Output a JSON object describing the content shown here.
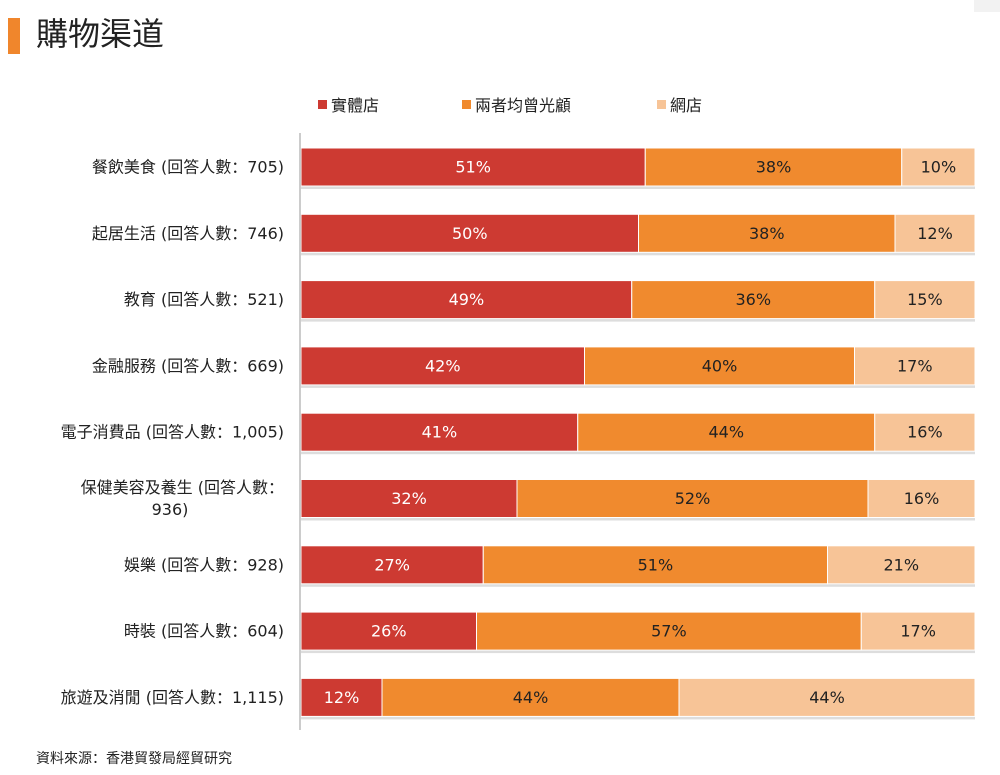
{
  "header": {
    "title": "購物渠道"
  },
  "source_note": "資料來源：香港貿發局經貿研究",
  "colors": {
    "title_accent": "#f0862c",
    "series": [
      "#cd3a32",
      "#f08a2e",
      "#f7c497"
    ],
    "axis": "#999999"
  },
  "chart_data": {
    "type": "bar",
    "orientation": "horizontal",
    "stacked": true,
    "title": "購物渠道",
    "legend_position": "top",
    "xlim": [
      0,
      100
    ],
    "value_suffix": "%",
    "categories": [
      "餐飲美食 (回答人數：705)",
      "起居生活 (回答人數：746)",
      "教育 (回答人數：521)",
      "金融服務 (回答人數：669)",
      "電子消費品 (回答人數：1,005)",
      "保健美容及養生 (回答人數：936)",
      "娛樂 (回答人數：928)",
      "時裝 (回答人數：604)",
      "旅遊及消閒 (回答人數：1,115)"
    ],
    "category_lines": [
      [
        "餐飲美食 (回答人數：705)"
      ],
      [
        "起居生活 (回答人數：746)"
      ],
      [
        "教育 (回答人數：521)"
      ],
      [
        "金融服務 (回答人數：669)"
      ],
      [
        "電子消費品 (回答人數：1,005)"
      ],
      [
        "保健美容及養生 (回答人數：",
        "936)"
      ],
      [
        "娛樂 (回答人數：928)"
      ],
      [
        "時裝 (回答人數：604)"
      ],
      [
        "旅遊及消閒 (回答人數：1,115)"
      ]
    ],
    "series": [
      {
        "name": "實體店",
        "values": [
          51,
          50,
          49,
          42,
          41,
          32,
          27,
          26,
          12
        ]
      },
      {
        "name": "兩者均曾光顧",
        "values": [
          38,
          38,
          36,
          40,
          44,
          52,
          51,
          57,
          44
        ]
      },
      {
        "name": "網店",
        "values": [
          10,
          12,
          15,
          17,
          16,
          16,
          21,
          17,
          44
        ]
      }
    ]
  }
}
